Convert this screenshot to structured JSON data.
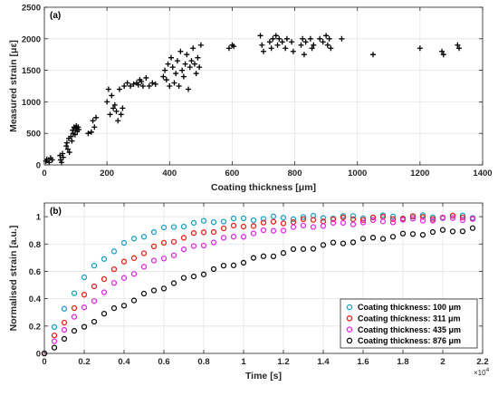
{
  "chart_data": [
    {
      "type": "scatter",
      "panel": "(a)",
      "xlabel": "Coating thickness [μm]",
      "ylabel": "Measured strain [με]",
      "xlim": [
        0,
        1400
      ],
      "ylim": [
        0,
        2500
      ],
      "xticks": [
        "0",
        "200",
        "400",
        "600",
        "800",
        "1000",
        "1200",
        "1400"
      ],
      "yticks": [
        "0",
        "500",
        "1000",
        "1500",
        "2000",
        "2500"
      ],
      "grid": true,
      "marker": "+",
      "color": "#000000",
      "points": [
        [
          5,
          60
        ],
        [
          8,
          90
        ],
        [
          15,
          40
        ],
        [
          20,
          110
        ],
        [
          25,
          80
        ],
        [
          50,
          150
        ],
        [
          52,
          80
        ],
        [
          55,
          40
        ],
        [
          58,
          180
        ],
        [
          60,
          120
        ],
        [
          70,
          300
        ],
        [
          72,
          350
        ],
        [
          75,
          250
        ],
        [
          78,
          420
        ],
        [
          80,
          200
        ],
        [
          85,
          450
        ],
        [
          88,
          380
        ],
        [
          90,
          550
        ],
        [
          92,
          500
        ],
        [
          95,
          600
        ],
        [
          98,
          480
        ],
        [
          100,
          580
        ],
        [
          102,
          620
        ],
        [
          105,
          530
        ],
        [
          108,
          600
        ],
        [
          110,
          560
        ],
        [
          140,
          500
        ],
        [
          150,
          520
        ],
        [
          155,
          700
        ],
        [
          160,
          600
        ],
        [
          165,
          750
        ],
        [
          200,
          1000
        ],
        [
          205,
          1200
        ],
        [
          210,
          800
        ],
        [
          215,
          1100
        ],
        [
          220,
          900
        ],
        [
          225,
          950
        ],
        [
          230,
          850
        ],
        [
          235,
          700
        ],
        [
          240,
          1200
        ],
        [
          245,
          800
        ],
        [
          250,
          900
        ],
        [
          255,
          1250
        ],
        [
          265,
          1300
        ],
        [
          275,
          1250
        ],
        [
          285,
          1280
        ],
        [
          295,
          1300
        ],
        [
          300,
          1270
        ],
        [
          305,
          1350
        ],
        [
          310,
          1320
        ],
        [
          315,
          1250
        ],
        [
          325,
          1380
        ],
        [
          335,
          1250
        ],
        [
          345,
          1300
        ],
        [
          355,
          1280
        ],
        [
          380,
          1400
        ],
        [
          385,
          1500
        ],
        [
          390,
          1350
        ],
        [
          395,
          1600
        ],
        [
          400,
          1250
        ],
        [
          405,
          1700
        ],
        [
          410,
          1550
        ],
        [
          415,
          1300
        ],
        [
          420,
          1450
        ],
        [
          425,
          1650
        ],
        [
          430,
          1250
        ],
        [
          435,
          1800
        ],
        [
          440,
          1500
        ],
        [
          445,
          1400
        ],
        [
          450,
          1600
        ],
        [
          455,
          1750
        ],
        [
          460,
          1200
        ],
        [
          465,
          1550
        ],
        [
          470,
          1650
        ],
        [
          475,
          1850
        ],
        [
          480,
          1600
        ],
        [
          485,
          1450
        ],
        [
          490,
          1700
        ],
        [
          495,
          1550
        ],
        [
          500,
          1900
        ],
        [
          590,
          1850
        ],
        [
          600,
          1900
        ],
        [
          605,
          1880
        ],
        [
          690,
          2050
        ],
        [
          695,
          1900
        ],
        [
          700,
          1800
        ],
        [
          720,
          1950
        ],
        [
          725,
          1850
        ],
        [
          730,
          2000
        ],
        [
          740,
          2050
        ],
        [
          745,
          1900
        ],
        [
          750,
          2000
        ],
        [
          760,
          1950
        ],
        [
          770,
          1850
        ],
        [
          775,
          2000
        ],
        [
          790,
          1950
        ],
        [
          795,
          1800
        ],
        [
          820,
          1900
        ],
        [
          825,
          2000
        ],
        [
          830,
          1750
        ],
        [
          835,
          1950
        ],
        [
          850,
          2000
        ],
        [
          855,
          1850
        ],
        [
          860,
          1900
        ],
        [
          880,
          2000
        ],
        [
          890,
          1950
        ],
        [
          900,
          2050
        ],
        [
          905,
          1900
        ],
        [
          910,
          2000
        ],
        [
          915,
          1850
        ],
        [
          950,
          2000
        ],
        [
          1050,
          1750
        ],
        [
          1200,
          1850
        ],
        [
          1270,
          1800
        ],
        [
          1275,
          1750
        ],
        [
          1320,
          1900
        ],
        [
          1325,
          1850
        ]
      ]
    },
    {
      "type": "scatter",
      "panel": "(b)",
      "xlabel": "Time [s]",
      "ylabel": "Normalised strain [a.u.]",
      "xlim": [
        0,
        2.2
      ],
      "ylim": [
        0,
        1.1
      ],
      "xticks": [
        "0",
        "0.2",
        "0.4",
        "0.6",
        "0.8",
        "1",
        "1.2",
        "1.4",
        "1.6",
        "1.8",
        "2",
        "2.2"
      ],
      "yticks": [
        "0",
        "0.2",
        "0.4",
        "0.6",
        "0.8",
        "1"
      ],
      "x_exponent": "×10",
      "x_exponent_power": "4",
      "grid": true,
      "marker": "o",
      "legend_position": "bottom-right",
      "series": [
        {
          "name": "Coating thickness: 100 μm",
          "color": "#1ba3c6",
          "tau": 0.25
        },
        {
          "name": "Coating thickness: 311 μm",
          "color": "#e8231c",
          "tau": 0.37
        },
        {
          "name": "Coating thickness: 435 μm",
          "color": "#e22ce2",
          "tau": 0.5
        },
        {
          "name": "Coating thickness: 876 μm",
          "color": "#111111",
          "tau": 0.9
        }
      ],
      "x": [
        0,
        0.05,
        0.1,
        0.15,
        0.2,
        0.25,
        0.3,
        0.35,
        0.4,
        0.45,
        0.5,
        0.55,
        0.6,
        0.65,
        0.7,
        0.75,
        0.8,
        0.85,
        0.9,
        0.95,
        1.0,
        1.05,
        1.1,
        1.15,
        1.2,
        1.25,
        1.3,
        1.35,
        1.4,
        1.45,
        1.5,
        1.55,
        1.6,
        1.65,
        1.7,
        1.75,
        1.8,
        1.85,
        1.9,
        1.95,
        2.0,
        2.05,
        2.1,
        2.15
      ]
    }
  ]
}
